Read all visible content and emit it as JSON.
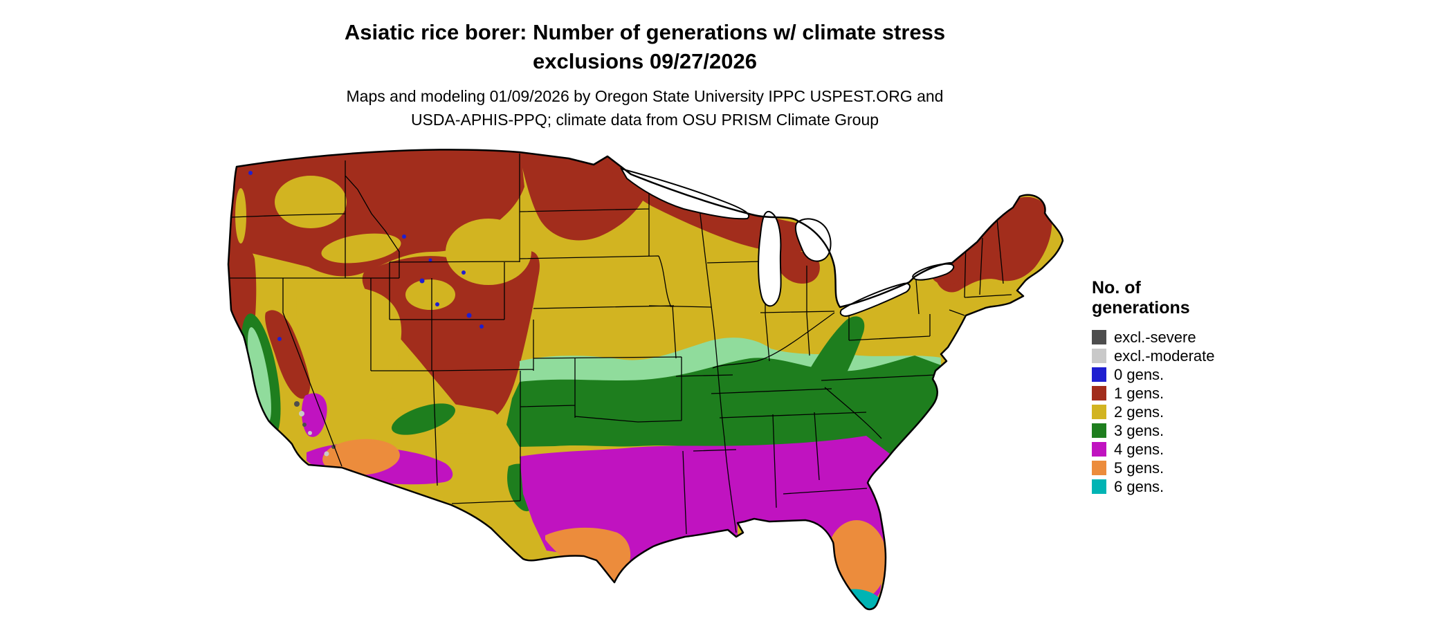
{
  "title": {
    "line1": "Asiatic rice borer: Number of generations w/ climate stress",
    "line2": "exclusions 09/27/2026"
  },
  "subtitle": {
    "line1": "Maps and modeling 01/09/2026 by Oregon State University IPPC USPEST.ORG and",
    "line2": "USDA-APHIS-PPQ; climate data from OSU PRISM Climate Group"
  },
  "legend": {
    "title_line1": "No. of",
    "title_line2": "generations",
    "items": [
      {
        "label": "excl.-severe",
        "color": "excl_severe"
      },
      {
        "label": "excl.-moderate",
        "color": "excl_moderate"
      },
      {
        "label": "0 gens.",
        "color": "gen0"
      },
      {
        "label": "1 gens.",
        "color": "gen1"
      },
      {
        "label": "2 gens.",
        "color": "gen2"
      },
      {
        "label": "3 gens.",
        "color": "gen3"
      },
      {
        "label": "4 gens.",
        "color": "gen4"
      },
      {
        "label": "5 gens.",
        "color": "gen5"
      },
      {
        "label": "6 gens.",
        "color": "gen6"
      }
    ]
  },
  "colors": {
    "background": "#ffffff",
    "map_border": "#000000",
    "water": "#ffffff",
    "excl_severe": "#4d4d4d",
    "excl_moderate": "#c9c9c9",
    "gen0": "#1f1fd0",
    "gen1": "#a22d1c",
    "gen2": "#d2b421",
    "gen3": "#1e7e1e",
    "gen3_light": "#90dc9c",
    "gen4": "#c013c0",
    "gen5": "#ec8c3c",
    "gen6": "#00b4b4"
  },
  "map": {
    "region": "Continental United States",
    "kind": "raster map of pest generations per year with climate stress exclusions"
  }
}
